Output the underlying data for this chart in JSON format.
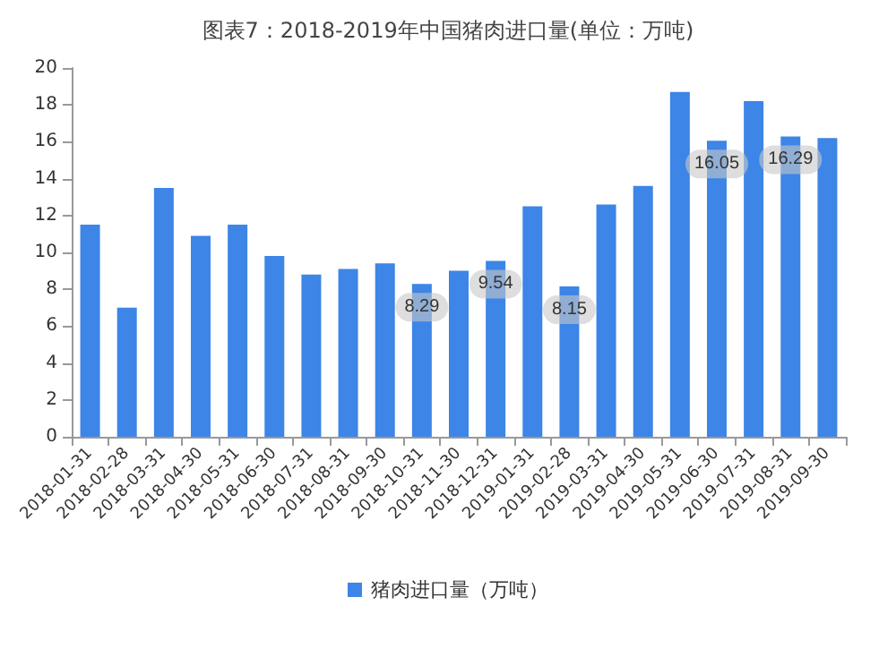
{
  "chart_data": {
    "type": "bar",
    "title": "图表7：2018-2019年中国猪肉进口量(单位：万吨)",
    "categories": [
      "2018-01-31",
      "2018-02-28",
      "2018-03-31",
      "2018-04-30",
      "2018-05-31",
      "2018-06-30",
      "2018-07-31",
      "2018-08-31",
      "2018-09-30",
      "2018-10-31",
      "2018-11-30",
      "2018-12-31",
      "2019-01-31",
      "2019-02-28",
      "2019-03-31",
      "2019-04-30",
      "2019-05-31",
      "2019-06-30",
      "2019-07-31",
      "2019-08-31",
      "2019-09-30"
    ],
    "series": [
      {
        "name": "猪肉进口量（万吨）",
        "color": "#3d85e6",
        "values": [
          11.5,
          7.0,
          13.5,
          10.9,
          11.5,
          9.8,
          8.8,
          9.1,
          9.4,
          8.29,
          9.0,
          9.54,
          12.5,
          8.15,
          12.6,
          13.6,
          18.7,
          16.05,
          18.2,
          16.29,
          16.2
        ],
        "value_labels": [
          null,
          null,
          null,
          null,
          null,
          null,
          null,
          null,
          null,
          "8.29",
          null,
          "9.54",
          null,
          "8.15",
          null,
          null,
          null,
          "16.05",
          null,
          "16.29",
          null
        ]
      }
    ],
    "ylim": [
      0,
      20
    ],
    "yticks": [
      0,
      2,
      4,
      6,
      8,
      10,
      12,
      14,
      16,
      18,
      20
    ],
    "grid": false,
    "legend": "bottom"
  }
}
